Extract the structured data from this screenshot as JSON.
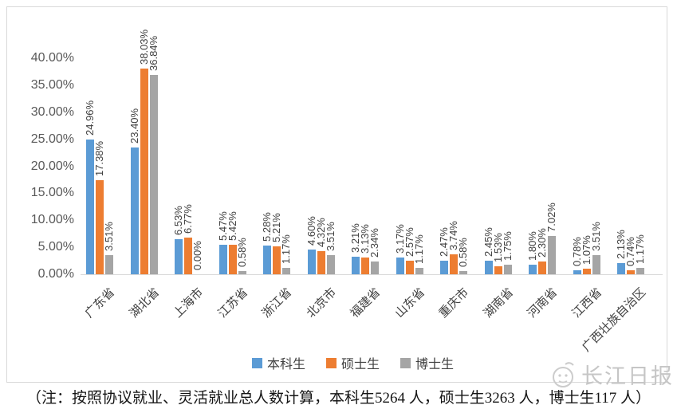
{
  "chart_data": {
    "type": "bar",
    "title": "",
    "categories": [
      "广东省",
      "湖北省",
      "上海市",
      "江苏省",
      "浙江省",
      "北京市",
      "福建省",
      "山东省",
      "重庆市",
      "湖南省",
      "河南省",
      "江西省",
      "广西壮族自治区"
    ],
    "series": [
      {
        "name": "本科生",
        "color": "#5B9BD5",
        "values": [
          24.96,
          23.4,
          6.53,
          5.47,
          5.28,
          4.6,
          3.21,
          3.17,
          2.47,
          2.45,
          1.8,
          0.78,
          2.13
        ]
      },
      {
        "name": "硕士生",
        "color": "#ED7D31",
        "values": [
          17.38,
          38.03,
          6.77,
          5.42,
          5.21,
          4.32,
          3.13,
          2.57,
          3.74,
          1.53,
          2.3,
          1.07,
          0.74
        ]
      },
      {
        "name": "博士生",
        "color": "#A5A5A5",
        "values": [
          3.51,
          36.84,
          0.0,
          0.58,
          1.17,
          3.51,
          2.34,
          1.17,
          0.58,
          1.75,
          7.02,
          3.51,
          1.17
        ]
      }
    ],
    "ylim": [
      0,
      40
    ],
    "ytick_step": 5,
    "yticks": [
      "0.00%",
      "5.00%",
      "10.00%",
      "15.00%",
      "20.00%",
      "25.00%",
      "30.00%",
      "35.00%",
      "40.00%"
    ],
    "grid": false,
    "legend_position": "bottom",
    "data_labels": true,
    "data_label_suffix": "%",
    "axis_color": "#d9d9d9",
    "tick_label_color": "#595959",
    "data_label_color": "#404040"
  },
  "watermark": {
    "text": "长江日报"
  },
  "footnote": {
    "text": "（注：按照协议就业、灵活就业总人数计算，本科生5264 人，硕士生3263 人，博士生117 人）"
  }
}
